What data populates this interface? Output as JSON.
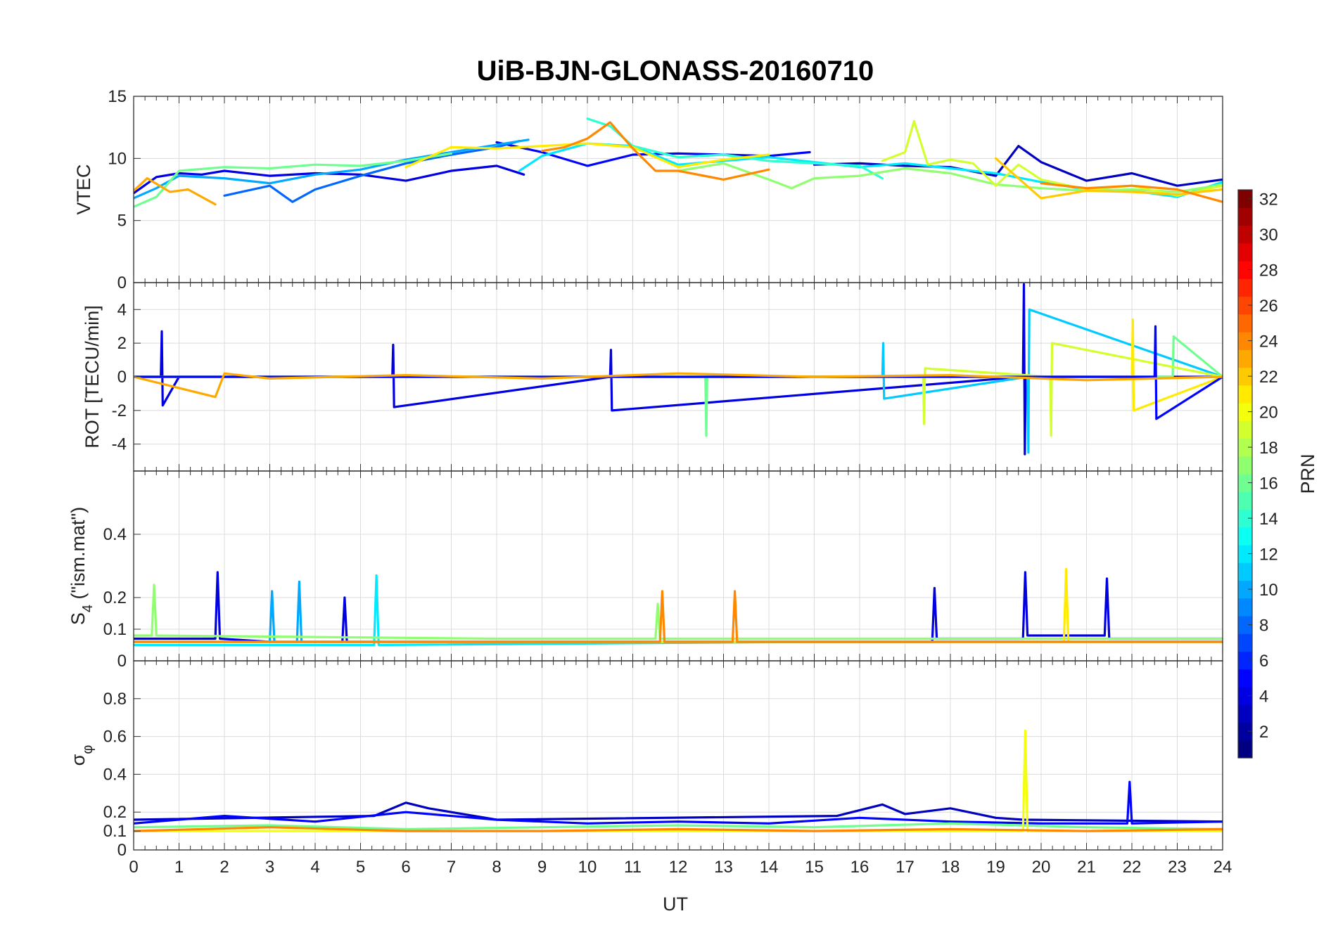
{
  "chart_data": {
    "type": "line",
    "title": "UiB-BJN-GLONASS-20160710",
    "xlabel": "UT",
    "xlim": [
      0,
      24
    ],
    "xticks": [
      "0",
      "1",
      "2",
      "3",
      "4",
      "5",
      "6",
      "7",
      "8",
      "9",
      "10",
      "11",
      "12",
      "13",
      "14",
      "15",
      "16",
      "17",
      "18",
      "19",
      "20",
      "21",
      "22",
      "23",
      "24"
    ],
    "panels": [
      {
        "id": "vtec",
        "ylabel": "VTEC",
        "ylim": [
          0,
          15
        ],
        "yticks": [
          "0",
          "5",
          "10",
          "15"
        ],
        "ytick_values": [
          0,
          5,
          10,
          15
        ],
        "series": [
          {
            "prn": 4,
            "x": [
              0.0,
              0.5,
              1.0,
              1.5,
              2.0,
              3.0,
              4.0,
              5.0,
              6.0,
              7.0,
              8.0,
              8.6
            ],
            "y": [
              7.2,
              8.5,
              8.8,
              8.7,
              9.0,
              8.6,
              8.8,
              8.7,
              8.2,
              9.0,
              9.4,
              8.7
            ]
          },
          {
            "prn": 5,
            "x": [
              8.0,
              9.0,
              10.0,
              11.0,
              12.0,
              13.0,
              14.0,
              14.9
            ],
            "y": [
              11.3,
              10.5,
              9.4,
              10.3,
              10.4,
              10.3,
              10.2,
              10.5
            ]
          },
          {
            "prn": 3,
            "x": [
              15.0,
              16.0,
              17.0,
              18.0,
              19.0,
              19.5,
              20.0,
              21.0,
              22.0,
              23.0,
              24.0
            ],
            "y": [
              9.5,
              9.6,
              9.4,
              9.3,
              8.6,
              11.0,
              9.7,
              8.2,
              8.8,
              7.8,
              8.3
            ]
          },
          {
            "prn": 8,
            "x": [
              2.0,
              3.0,
              3.5,
              4.0,
              5.0,
              6.0,
              7.0,
              8.0,
              8.5
            ],
            "y": [
              7.0,
              7.8,
              6.5,
              7.5,
              8.6,
              9.6,
              10.3,
              10.9,
              11.4
            ]
          },
          {
            "prn": 10,
            "x": [
              0.0,
              0.5,
              1.0,
              2.0,
              3.0,
              4.0,
              5.0,
              6.0,
              7.0,
              8.0,
              8.7
            ],
            "y": [
              6.8,
              7.6,
              8.6,
              8.4,
              8.0,
              8.7,
              9.1,
              9.9,
              10.5,
              11.1,
              11.5
            ]
          },
          {
            "prn": 12,
            "x": [
              8.5,
              9.0,
              10.0,
              11.0,
              12.0,
              13.0,
              14.0,
              15.0,
              16.0,
              17.0,
              18.0,
              19.0,
              20.0,
              21.0,
              22.0,
              23.0,
              24.0
            ],
            "y": [
              9.0,
              10.2,
              11.2,
              11.0,
              9.5,
              9.8,
              10.1,
              9.7,
              9.3,
              9.6,
              9.2,
              8.8,
              8.1,
              7.5,
              7.4,
              6.9,
              8.1
            ]
          },
          {
            "prn": 14,
            "x": [
              10.0,
              10.5,
              11.0,
              12.0,
              13.0,
              14.0,
              15.0,
              16.0,
              16.5
            ],
            "y": [
              13.2,
              12.6,
              11.0,
              10.1,
              10.3,
              9.8,
              9.6,
              9.4,
              8.4
            ]
          },
          {
            "prn": 16,
            "x": [
              0.0,
              0.5,
              1.0,
              2.0,
              3.0,
              4.0,
              5.0,
              6.0,
              7.0
            ],
            "y": [
              6.1,
              6.9,
              9.0,
              9.3,
              9.2,
              9.5,
              9.4,
              9.8,
              10.4
            ]
          },
          {
            "prn": 17,
            "x": [
              12.0,
              13.0,
              14.0,
              14.5,
              15.0,
              16.0,
              17.0,
              18.0,
              19.0,
              20.0,
              21.0,
              22.0,
              23.0,
              24.0
            ],
            "y": [
              9.0,
              9.6,
              8.3,
              7.6,
              8.4,
              8.6,
              9.2,
              8.8,
              7.9,
              7.6,
              7.4,
              7.5,
              7.3,
              7.9
            ]
          },
          {
            "prn": 19,
            "x": [
              16.5,
              17.0,
              17.2,
              17.5,
              18.0,
              18.5,
              19.0,
              19.5,
              20.0,
              21.0,
              22.0,
              23.0,
              24.0
            ],
            "y": [
              9.8,
              10.5,
              13.0,
              9.5,
              9.9,
              9.6,
              7.8,
              9.5,
              8.3,
              7.5,
              7.8,
              7.0,
              7.8
            ]
          },
          {
            "prn": 21,
            "x": [
              6.0,
              7.0,
              8.0,
              9.0,
              10.0,
              11.0,
              12.0,
              13.0,
              14.0
            ],
            "y": [
              9.3,
              10.9,
              10.8,
              11.0,
              11.2,
              10.9,
              9.3,
              9.9,
              10.3
            ]
          },
          {
            "prn": 22,
            "x": [
              19.0,
              20.0,
              21.0,
              22.0,
              23.0,
              24.0
            ],
            "y": [
              10.0,
              6.8,
              7.4,
              7.3,
              7.1,
              7.5
            ]
          },
          {
            "prn": 23,
            "x": [
              0.0,
              0.3,
              0.8,
              1.2,
              1.8
            ],
            "y": [
              7.4,
              8.4,
              7.3,
              7.5,
              6.3
            ]
          },
          {
            "prn": 24,
            "x": [
              9.0,
              9.5,
              10.0,
              10.5,
              11.0,
              11.5,
              12.0,
              13.0,
              14.0
            ],
            "y": [
              10.6,
              10.9,
              11.6,
              12.9,
              10.8,
              9.0,
              9.0,
              8.3,
              9.1
            ]
          },
          {
            "prn": 24,
            "x": [
              20.0,
              21.0,
              22.0,
              23.0,
              24.0
            ],
            "y": [
              8.0,
              7.6,
              7.8,
              7.5,
              6.5
            ]
          }
        ]
      },
      {
        "id": "rot",
        "ylabel": "ROT [TECU/min]",
        "ylim": [
          -5.6,
          5.6
        ],
        "yticks": [
          "-4",
          "-2",
          "0",
          "2",
          "4"
        ],
        "ytick_values": [
          -4,
          -2,
          0,
          2,
          4
        ],
        "series": [
          {
            "prn": 4,
            "x": [
              0.0,
              0.6,
              0.62,
              0.64,
              1.0,
              5.7,
              5.72,
              5.74,
              10.5,
              10.52,
              10.54,
              19.6,
              19.62,
              19.64,
              19.66,
              24.0
            ],
            "y": [
              0.0,
              0.0,
              2.7,
              -1.7,
              0.0,
              0.0,
              1.9,
              -1.8,
              0.0,
              1.6,
              -2.0,
              0.0,
              5.5,
              -4.6,
              0.0,
              0.0
            ]
          },
          {
            "prn": 11,
            "x": [
              0.0,
              16.5,
              16.52,
              16.54,
              19.7,
              19.72,
              19.74,
              24.0
            ],
            "y": [
              0.0,
              0.0,
              2.0,
              -1.3,
              0.0,
              -4.5,
              4.0,
              0.0
            ]
          },
          {
            "prn": 16,
            "x": [
              0.0,
              12.6,
              12.62,
              12.64,
              22.9,
              22.92,
              24.0
            ],
            "y": [
              0.0,
              0.0,
              -3.5,
              0.0,
              0.0,
              2.4,
              0.0
            ]
          },
          {
            "prn": 19,
            "x": [
              0.0,
              17.4,
              17.42,
              17.44,
              20.2,
              20.22,
              20.24,
              24.0
            ],
            "y": [
              0.0,
              0.0,
              -2.8,
              0.5,
              0.0,
              -3.5,
              2.0,
              0.0
            ]
          },
          {
            "prn": 21,
            "x": [
              0.0,
              22.0,
              22.02,
              22.04,
              24.0
            ],
            "y": [
              0.0,
              0.0,
              3.4,
              -2.0,
              0.0
            ]
          },
          {
            "prn": 5,
            "x": [
              0.0,
              22.5,
              22.52,
              22.54,
              24.0
            ],
            "y": [
              0.0,
              0.0,
              3.0,
              -2.5,
              0.0
            ]
          },
          {
            "prn": 23,
            "x": [
              0.0,
              1.8,
              2.0,
              3.0,
              6.0,
              9.0,
              12.0,
              15.0,
              18.0,
              21.0,
              24.0
            ],
            "y": [
              0.0,
              -1.2,
              0.2,
              -0.1,
              0.1,
              -0.1,
              0.2,
              0.0,
              0.1,
              -0.2,
              0.0
            ]
          }
        ]
      },
      {
        "id": "s4",
        "ylabel": "S4 (\"ism.mat\")",
        "ylabel_main": "S",
        "ylabel_sub": "4",
        "ylabel_rest": " (\"ism.mat\")",
        "ylim": [
          0,
          0.6
        ],
        "yticks": [
          "0",
          "0.1",
          "0.2",
          "0.4"
        ],
        "ytick_values": [
          0,
          0.1,
          0.2,
          0.4
        ],
        "series": [
          {
            "prn": 4,
            "x": [
              0.0,
              1.8,
              1.85,
              1.9,
              3.0,
              4.6,
              4.65,
              4.7,
              17.6,
              17.65,
              17.7,
              19.6,
              19.65,
              19.7,
              21.4,
              21.45,
              21.5,
              24.0
            ],
            "y": [
              0.07,
              0.07,
              0.28,
              0.07,
              0.06,
              0.06,
              0.2,
              0.06,
              0.06,
              0.23,
              0.07,
              0.07,
              0.28,
              0.08,
              0.08,
              0.26,
              0.07,
              0.07
            ]
          },
          {
            "prn": 10,
            "x": [
              0.0,
              3.0,
              3.05,
              3.1,
              3.6,
              3.65,
              3.7,
              24.0
            ],
            "y": [
              0.06,
              0.06,
              0.22,
              0.06,
              0.06,
              0.25,
              0.06,
              0.06
            ]
          },
          {
            "prn": 12,
            "x": [
              0.0,
              5.3,
              5.35,
              5.4,
              15.0,
              24.0
            ],
            "y": [
              0.05,
              0.05,
              0.27,
              0.05,
              0.06,
              0.06
            ]
          },
          {
            "prn": 17,
            "x": [
              0.0,
              0.4,
              0.45,
              0.5,
              8.0,
              11.5,
              11.55,
              11.6,
              24.0
            ],
            "y": [
              0.08,
              0.08,
              0.24,
              0.08,
              0.07,
              0.07,
              0.18,
              0.07,
              0.07
            ]
          },
          {
            "prn": 21,
            "x": [
              0.0,
              20.5,
              20.55,
              20.6,
              24.0
            ],
            "y": [
              0.06,
              0.06,
              0.29,
              0.06,
              0.06
            ]
          },
          {
            "prn": 24,
            "x": [
              0.0,
              11.6,
              11.65,
              11.7,
              13.2,
              13.25,
              13.3,
              24.0
            ],
            "y": [
              0.06,
              0.06,
              0.22,
              0.06,
              0.06,
              0.22,
              0.06,
              0.06
            ]
          }
        ]
      },
      {
        "id": "sigphi",
        "ylabel": "σφ",
        "ylabel_main": "σ",
        "ylabel_sub": "φ",
        "ylim": [
          0,
          1.0
        ],
        "yticks": [
          "0",
          "0.1",
          "0.2",
          "0.4",
          "0.6",
          "0.8"
        ],
        "ytick_values": [
          0,
          0.1,
          0.2,
          0.4,
          0.6,
          0.8
        ],
        "series": [
          {
            "prn": 3,
            "x": [
              0.0,
              5.3,
              6.0,
              6.5,
              8.0,
              15.5,
              16.5,
              17.0,
              18.0,
              19.0,
              19.6,
              24.0
            ],
            "y": [
              0.16,
              0.18,
              0.25,
              0.22,
              0.16,
              0.18,
              0.24,
              0.19,
              0.22,
              0.17,
              0.16,
              0.15
            ]
          },
          {
            "prn": 5,
            "x": [
              0.0,
              2.0,
              4.0,
              6.0,
              8.0,
              10.0,
              12.0,
              14.0,
              16.0,
              18.0,
              20.0,
              21.9,
              21.95,
              22.0,
              24.0
            ],
            "y": [
              0.14,
              0.18,
              0.15,
              0.2,
              0.16,
              0.14,
              0.15,
              0.14,
              0.17,
              0.15,
              0.14,
              0.14,
              0.36,
              0.14,
              0.15
            ]
          },
          {
            "prn": 16,
            "x": [
              0.0,
              3.0,
              6.0,
              9.0,
              12.0,
              15.0,
              18.0,
              21.0,
              24.0
            ],
            "y": [
              0.12,
              0.13,
              0.11,
              0.12,
              0.13,
              0.12,
              0.14,
              0.12,
              0.11
            ]
          },
          {
            "prn": 20,
            "x": [
              0.0,
              19.6,
              19.65,
              19.7,
              24.0
            ],
            "y": [
              0.1,
              0.1,
              0.63,
              0.1,
              0.1
            ]
          },
          {
            "prn": 24,
            "x": [
              0.0,
              3.0,
              6.0,
              9.0,
              12.0,
              15.0,
              18.0,
              21.0,
              24.0
            ],
            "y": [
              0.1,
              0.12,
              0.1,
              0.1,
              0.11,
              0.1,
              0.11,
              0.1,
              0.11
            ]
          }
        ]
      }
    ],
    "colorbar": {
      "label": "PRN",
      "range": [
        1,
        32
      ],
      "ticks": [
        "2",
        "4",
        "6",
        "8",
        "10",
        "12",
        "14",
        "16",
        "18",
        "20",
        "22",
        "24",
        "26",
        "28",
        "30",
        "32"
      ],
      "tick_values": [
        2,
        4,
        6,
        8,
        10,
        12,
        14,
        16,
        18,
        20,
        22,
        24,
        26,
        28,
        30,
        32
      ],
      "colormap": "jet"
    }
  }
}
